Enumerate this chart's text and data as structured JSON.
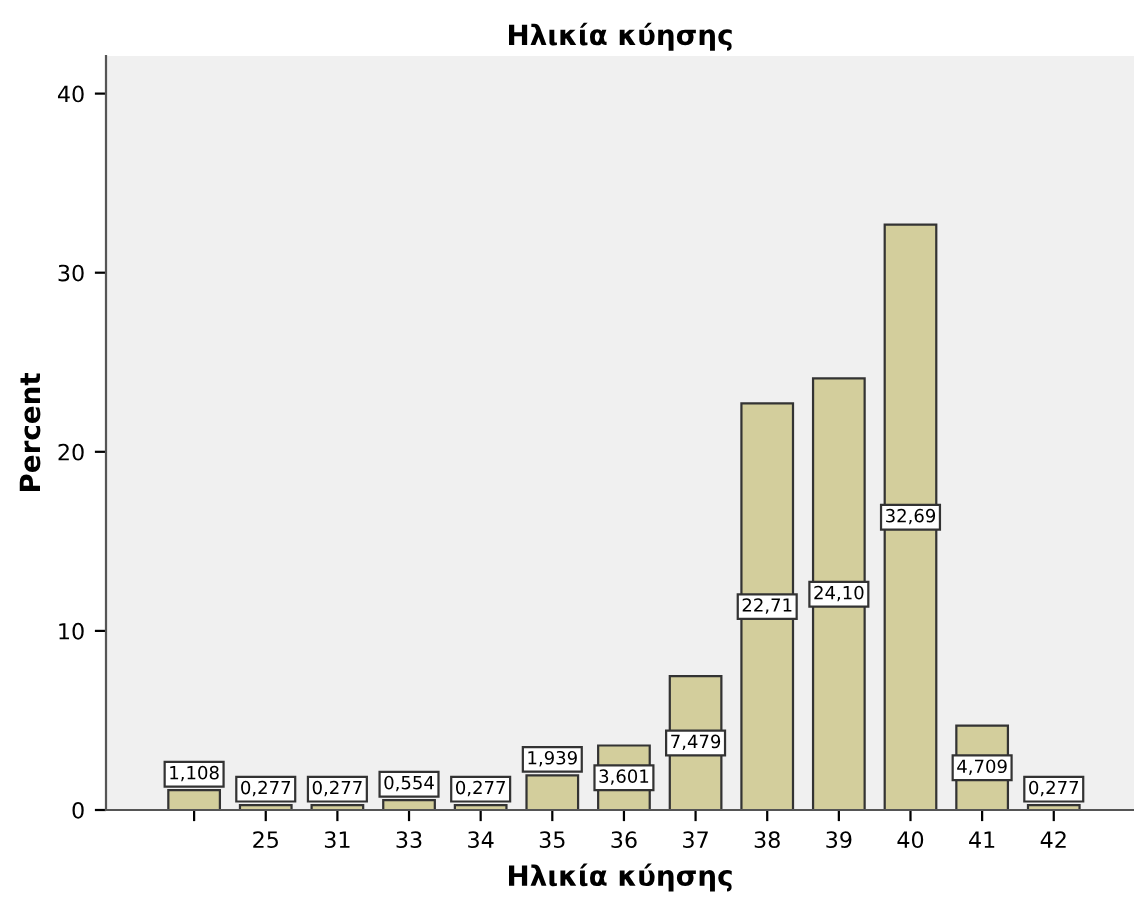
{
  "chart_data": {
    "type": "bar",
    "title": "Ηλικία κύησης",
    "xlabel": "Ηλικία κύησης",
    "ylabel": "Percent",
    "categories": [
      null,
      "25",
      "31",
      "33",
      "34",
      "35",
      "36",
      "37",
      "38",
      "39",
      "40",
      "41",
      "42"
    ],
    "values": [
      1.108,
      0.277,
      0.277,
      0.554,
      0.277,
      1.939,
      3.601,
      7.479,
      22.71,
      24.1,
      32.69,
      4.709,
      0.277
    ],
    "value_labels": [
      "1,108",
      "0,277",
      "0,277",
      "0,554",
      "0,277",
      "1,939",
      "3,601",
      "7,479",
      "22,71",
      "24,10",
      "32,69",
      "4,709",
      "0,277"
    ],
    "color": "#d3ce9c",
    "ylim": [
      0,
      42.1
    ],
    "yticks": [
      0,
      10,
      20,
      30,
      40
    ],
    "grid": false,
    "legend": false
  }
}
